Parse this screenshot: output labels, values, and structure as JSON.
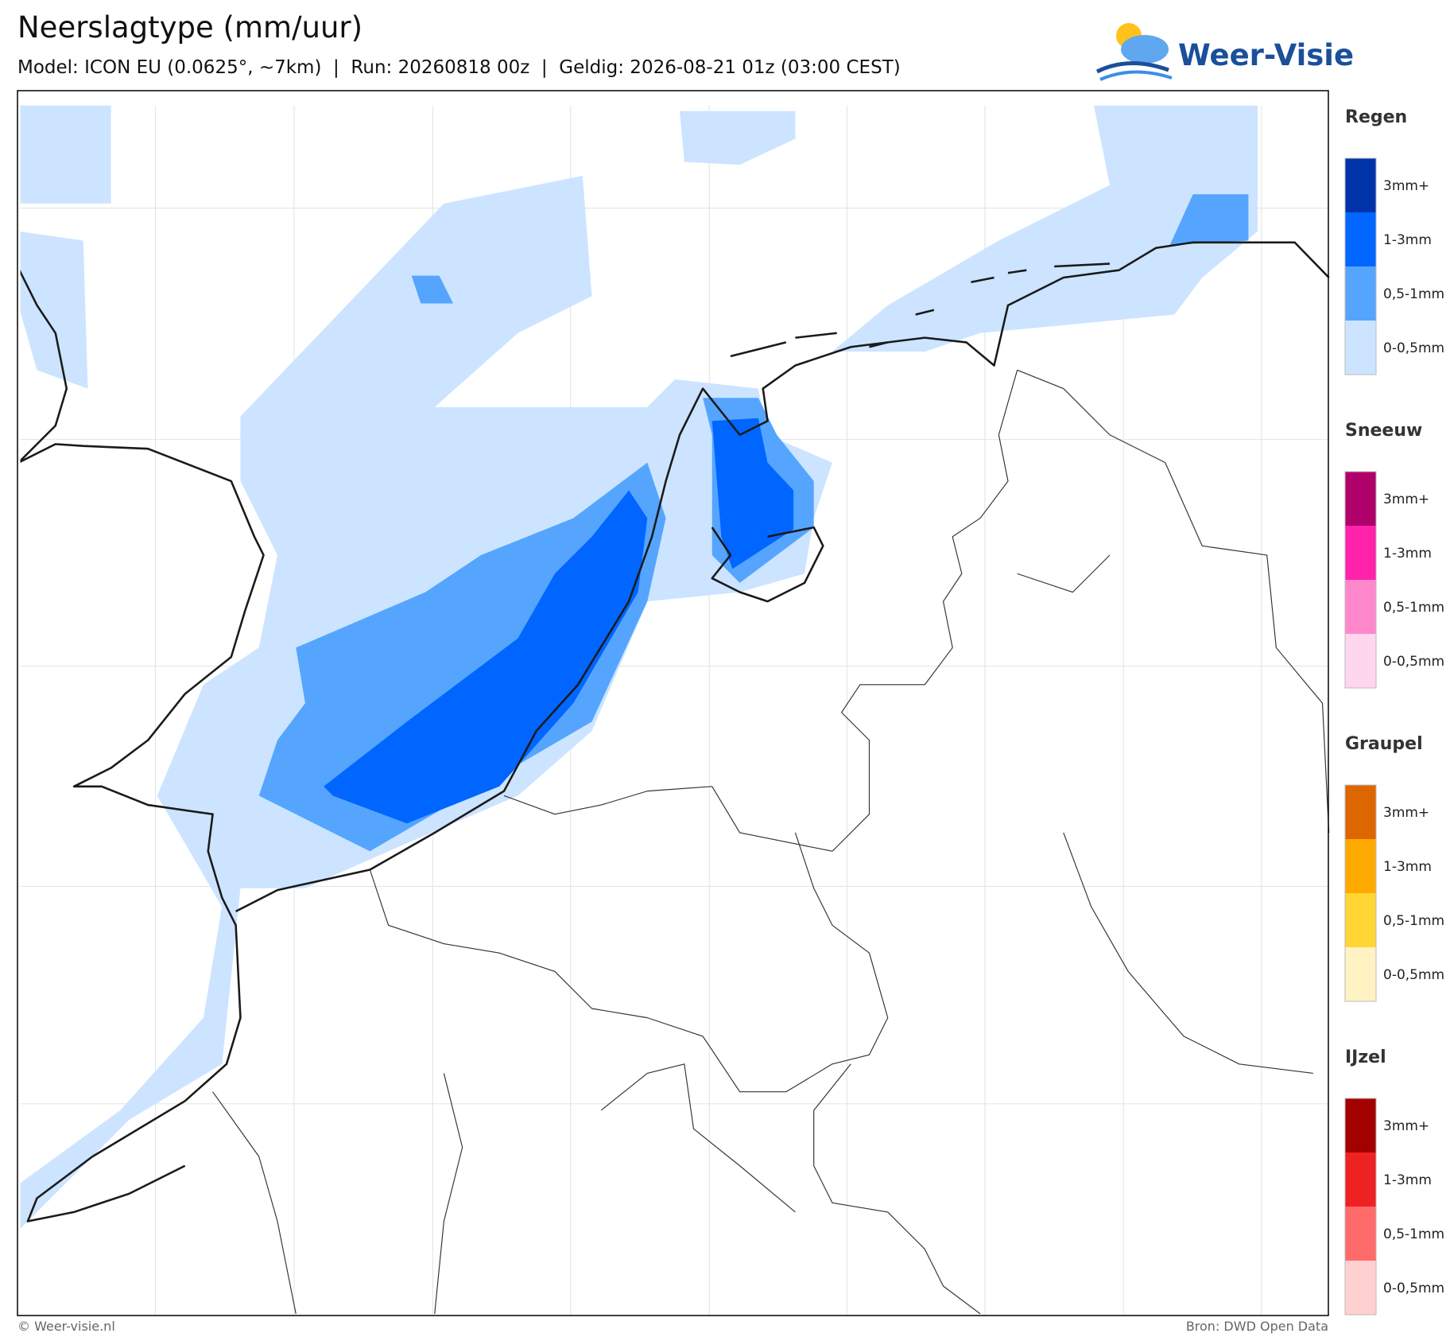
{
  "header": {
    "title": "Neerslagtype (mm/uur)",
    "subtitle": "Model: ICON EU (0.0625°, ~7km)  |  Run: 20260818 00z  |  Geldig: 2026-08-21 01z (03:00 CEST)",
    "logo": "Weer-Visie"
  },
  "legend": [
    {
      "title": "Regen",
      "items": [
        {
          "label": "3mm+",
          "color": "#0033aa"
        },
        {
          "label": "1-3mm",
          "color": "#0066ff"
        },
        {
          "label": "0,5-1mm",
          "color": "#55a5ff"
        },
        {
          "label": "0-0,5mm",
          "color": "#cce4ff"
        }
      ]
    },
    {
      "title": "Sneeuw",
      "items": [
        {
          "label": "3mm+",
          "color": "#b0006a"
        },
        {
          "label": "1-3mm",
          "color": "#ff22aa"
        },
        {
          "label": "0,5-1mm",
          "color": "#ff88cc"
        },
        {
          "label": "0-0,5mm",
          "color": "#ffd6ee"
        }
      ]
    },
    {
      "title": "Graupel",
      "items": [
        {
          "label": "3mm+",
          "color": "#dd6600"
        },
        {
          "label": "1-3mm",
          "color": "#ffaa00"
        },
        {
          "label": "0,5-1mm",
          "color": "#ffd633"
        },
        {
          "label": "0-0,5mm",
          "color": "#fff3c4"
        }
      ]
    },
    {
      "title": "IJzel",
      "items": [
        {
          "label": "3mm+",
          "color": "#a30000"
        },
        {
          "label": "1-3mm",
          "color": "#ee2222"
        },
        {
          "label": "0,5-1mm",
          "color": "#ff6b6b"
        },
        {
          "label": "0-0,5mm",
          "color": "#ffd0d0"
        }
      ]
    }
  ],
  "footer": {
    "left": "© Weer-visie.nl",
    "right": "Bron: DWD Open Data"
  }
}
